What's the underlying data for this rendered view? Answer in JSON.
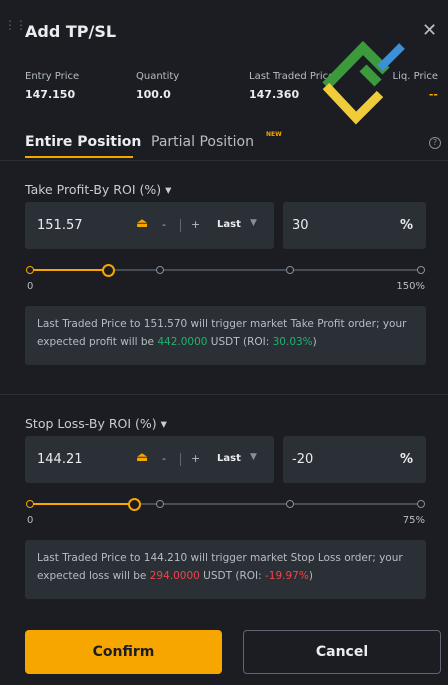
{
  "header": {
    "title": "Add TP/SL"
  },
  "stats": [
    {
      "label": "Entry Price",
      "value": "147.150"
    },
    {
      "label": "Quantity",
      "value": "100.0"
    },
    {
      "label": "Last Traded Price",
      "value": "147.360"
    },
    {
      "label": "Liq. Price",
      "value": "--"
    }
  ],
  "tabs": {
    "active": "Entire Position",
    "inactive": "Partial Position",
    "badge": "NEW"
  },
  "take_profit": {
    "label": "Take Profit-By ROI (%)",
    "price": "151.57",
    "minus": "-",
    "plus": "+",
    "trigger": "Last",
    "roi": "30",
    "unit": "%",
    "slider_min": "0",
    "slider_max": "150%",
    "info": {
      "text": "Last Traded Price to 151.570 will trigger market Take Profit order; your expected profit will be ",
      "amount": "442.0000",
      "middle": " USDT (ROI: ",
      "roi": "30.03%",
      "end": ")"
    }
  },
  "stop_loss": {
    "label": "Stop Loss-By ROI (%)",
    "price": "144.21",
    "minus": "-",
    "plus": "+",
    "trigger": "Last",
    "roi": "-20",
    "unit": "%",
    "slider_min": "0",
    "slider_max": "75%",
    "info": {
      "text": "Last Traded Price to 144.210 will trigger market Stop Loss order; your expected loss will be ",
      "amount": "294.0000",
      "middle": " USDT (ROI: ",
      "roi": "-19.97%",
      "end": ")"
    }
  },
  "buttons": {
    "confirm": "Confirm",
    "cancel": "Cancel"
  }
}
